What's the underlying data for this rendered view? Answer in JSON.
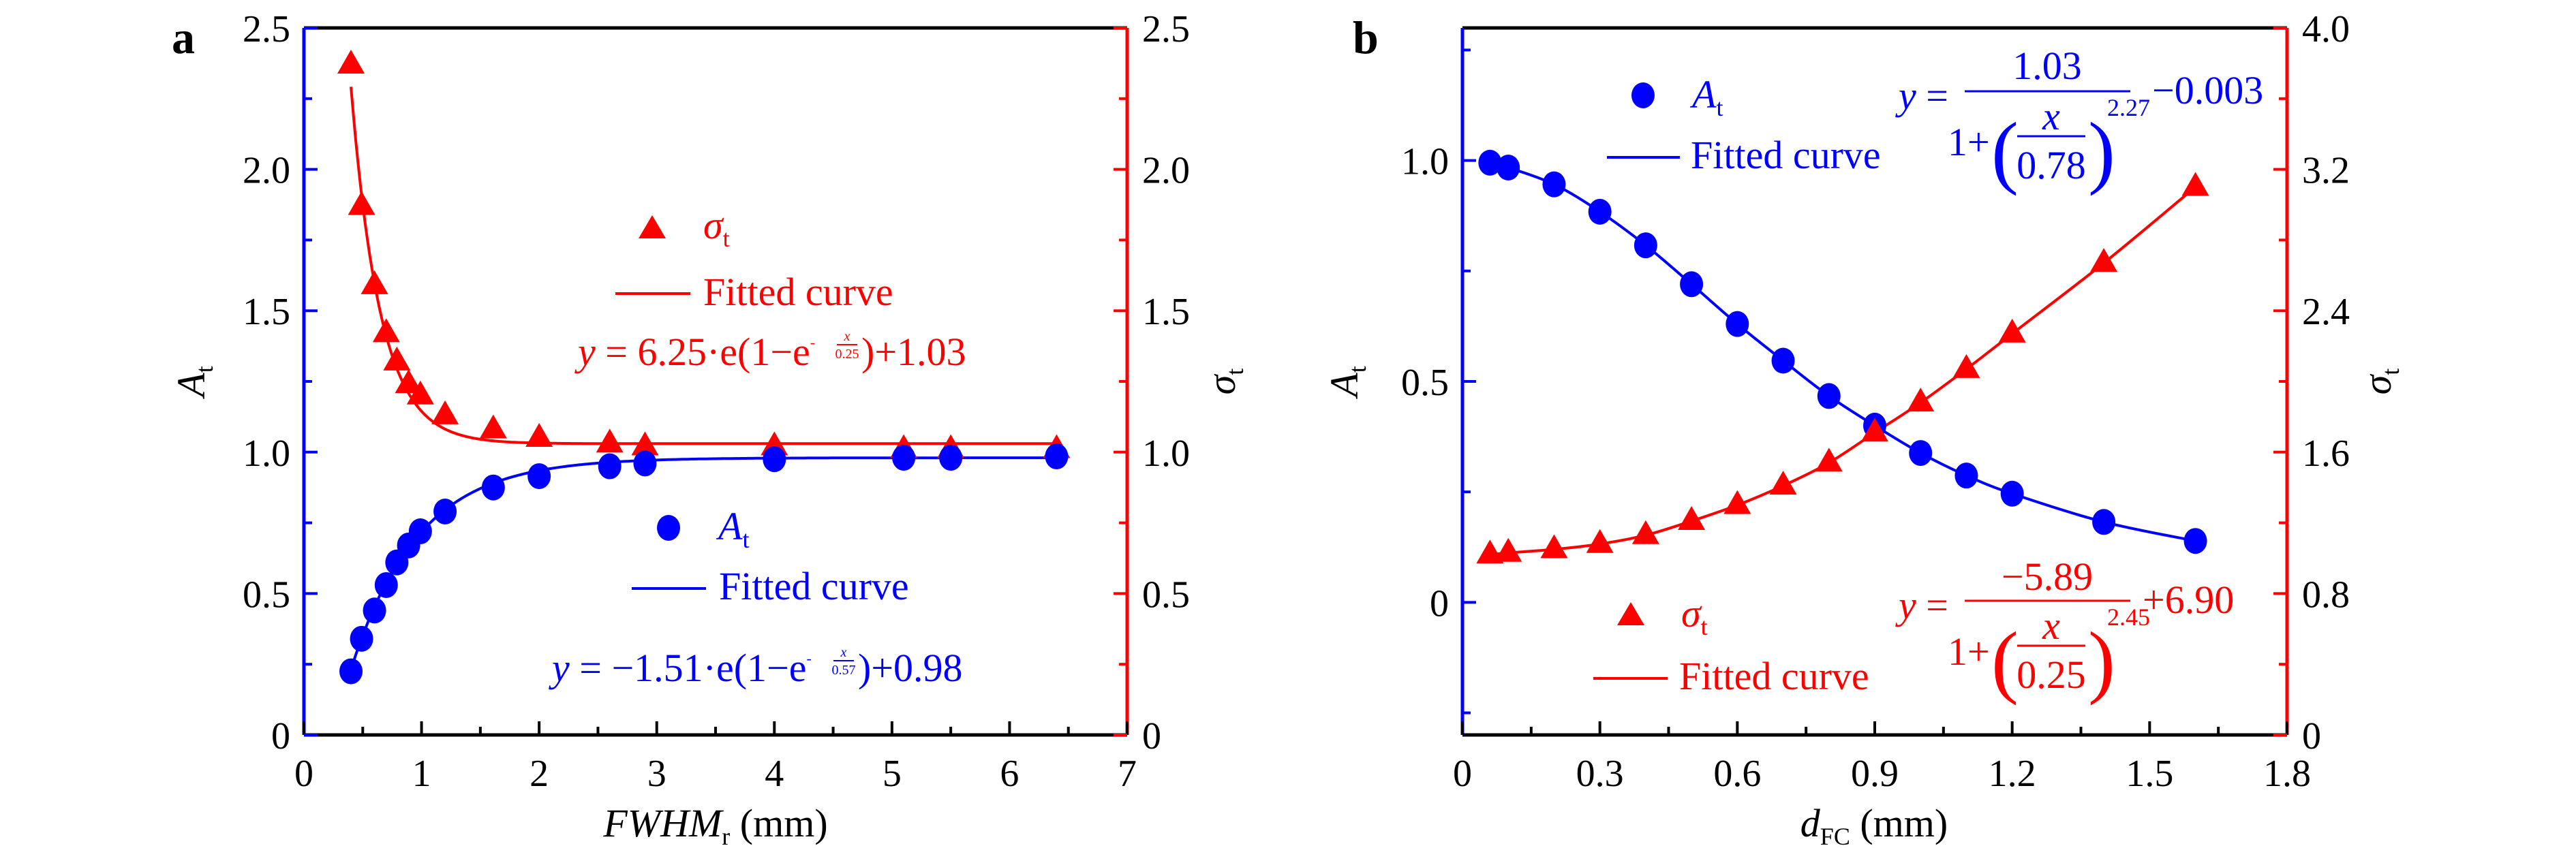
{
  "chart_data": [
    {
      "panel": "a",
      "type": "scatter",
      "xlabel": {
        "main": "FWHM",
        "sub": "r",
        "unit": " (mm)"
      },
      "ylabel_left": {
        "main": "A",
        "sub": "t"
      },
      "ylabel_right": {
        "main": "σ",
        "sub": "t"
      },
      "xlim": [
        0,
        7
      ],
      "ylim_left": [
        0,
        2.5
      ],
      "ylim_right": [
        0,
        2.5
      ],
      "x_ticks": [
        "0",
        "1",
        "2",
        "3",
        "4",
        "5",
        "6",
        "7"
      ],
      "y_ticks_left": [
        "0",
        "0.5",
        "1.0",
        "1.5",
        "2.0",
        "2.5"
      ],
      "y_ticks_right": [
        "0",
        "0.5",
        "1.0",
        "1.5",
        "2.0",
        "2.5"
      ],
      "grid": false,
      "series": [
        {
          "name": "σt",
          "axis": "right",
          "marker": "triangle",
          "color": "#ff0000",
          "x": [
            0.4,
            0.49,
            0.6,
            0.7,
            0.79,
            0.89,
            0.99,
            1.2,
            1.61,
            2.0,
            2.6,
            2.9,
            4.0,
            5.1,
            5.5,
            6.4
          ],
          "y": [
            2.37,
            1.87,
            1.59,
            1.42,
            1.32,
            1.24,
            1.2,
            1.13,
            1.08,
            1.05,
            1.03,
            1.02,
            1.02,
            1.01,
            1.01,
            1.01
          ]
        },
        {
          "name": "At",
          "axis": "left",
          "marker": "circle",
          "color": "#0000ff",
          "x": [
            0.4,
            0.49,
            0.6,
            0.7,
            0.79,
            0.89,
            0.99,
            1.2,
            1.61,
            2.0,
            2.6,
            2.9,
            4.0,
            5.1,
            5.5,
            6.4
          ],
          "y": [
            0.225,
            0.34,
            0.44,
            0.53,
            0.61,
            0.67,
            0.72,
            0.79,
            0.875,
            0.915,
            0.95,
            0.96,
            0.975,
            0.98,
            0.98,
            0.985
          ]
        }
      ],
      "fits": [
        {
          "series": "σt",
          "color": "#ff0000",
          "A": 6.25,
          "t": 0.25,
          "y0": 1.03
        },
        {
          "series": "At",
          "color": "#0000ff",
          "A": -1.51,
          "t": 0.57,
          "y0": 0.98
        }
      ],
      "legend": {
        "sigma": {
          "symbol": "σ",
          "sub": "t",
          "fit_label": "Fitted curve"
        },
        "at": {
          "symbol": "A",
          "sub": "t",
          "fit_label": "Fitted curve"
        }
      },
      "equations": {
        "red": {
          "y": "y",
          "pre": " = 6.25·e(1−e",
          "neg": "-",
          "num": "x",
          "den": "0.25",
          "post": ")+1.03"
        },
        "blue": {
          "y": "y",
          "pre": " = −1.51·e(1−e",
          "neg": "-",
          "num": "x",
          "den": "0.57",
          "post": ")+0.98"
        }
      }
    },
    {
      "panel": "b",
      "type": "scatter",
      "xlabel": {
        "main": "d",
        "sub": "FC",
        "unit": " (mm)"
      },
      "ylabel_left": {
        "main": "A",
        "sub": "t"
      },
      "ylabel_right": {
        "main": "σ",
        "sub": "t"
      },
      "xlim": [
        0,
        1.8
      ],
      "ylim_left": [
        -0.3,
        1.3
      ],
      "ylim_right": [
        0,
        4.0
      ],
      "x_ticks": [
        "0",
        "0.3",
        "0.6",
        "0.9",
        "1.2",
        "1.5",
        "1.8"
      ],
      "y_ticks_left": [
        "0",
        "0.5",
        "1.0"
      ],
      "y_ticks_right": [
        "0",
        "0.8",
        "1.6",
        "2.4",
        "3.2",
        "4.0"
      ],
      "grid": false,
      "series": [
        {
          "name": "At",
          "axis": "left",
          "marker": "circle",
          "color": "#0000ff",
          "x": [
            0.06,
            0.1,
            0.2,
            0.3,
            0.4,
            0.5,
            0.6,
            0.7,
            0.8,
            0.9,
            1.0,
            1.1,
            1.2,
            1.4,
            1.6
          ],
          "y": [
            0.995,
            0.984,
            0.946,
            0.884,
            0.808,
            0.72,
            0.63,
            0.547,
            0.467,
            0.4,
            0.338,
            0.287,
            0.246,
            0.182,
            0.139
          ]
        },
        {
          "name": "σt",
          "axis": "right",
          "marker": "triangle",
          "color": "#ff0000",
          "x": [
            0.06,
            0.1,
            0.2,
            0.3,
            0.4,
            0.5,
            0.6,
            0.7,
            0.8,
            0.9,
            1.0,
            1.1,
            1.2,
            1.4,
            1.6
          ],
          "y": [
            1.02,
            1.03,
            1.05,
            1.08,
            1.13,
            1.21,
            1.3,
            1.41,
            1.54,
            1.71,
            1.88,
            2.07,
            2.27,
            2.67,
            3.1
          ]
        }
      ],
      "legend": {
        "at": {
          "symbol": "A",
          "sub": "t",
          "fit_label": "Fitted curve"
        },
        "sigma": {
          "symbol": "σ",
          "sub": "t",
          "fit_label": "Fitted curve"
        }
      },
      "equations": {
        "blue": {
          "y": "y",
          "eq": " =",
          "num": "1.03",
          "one_plus": "1+",
          "inner_num": "x",
          "inner_den": "0.78",
          "exp": "2.27",
          "tail": "−0.003"
        },
        "red": {
          "y": "y",
          "eq": " =",
          "num": "−5.89",
          "one_plus": "1+",
          "inner_num": "x",
          "inner_den": "0.25",
          "exp": "2.45",
          "tail": "+6.90"
        }
      }
    }
  ]
}
